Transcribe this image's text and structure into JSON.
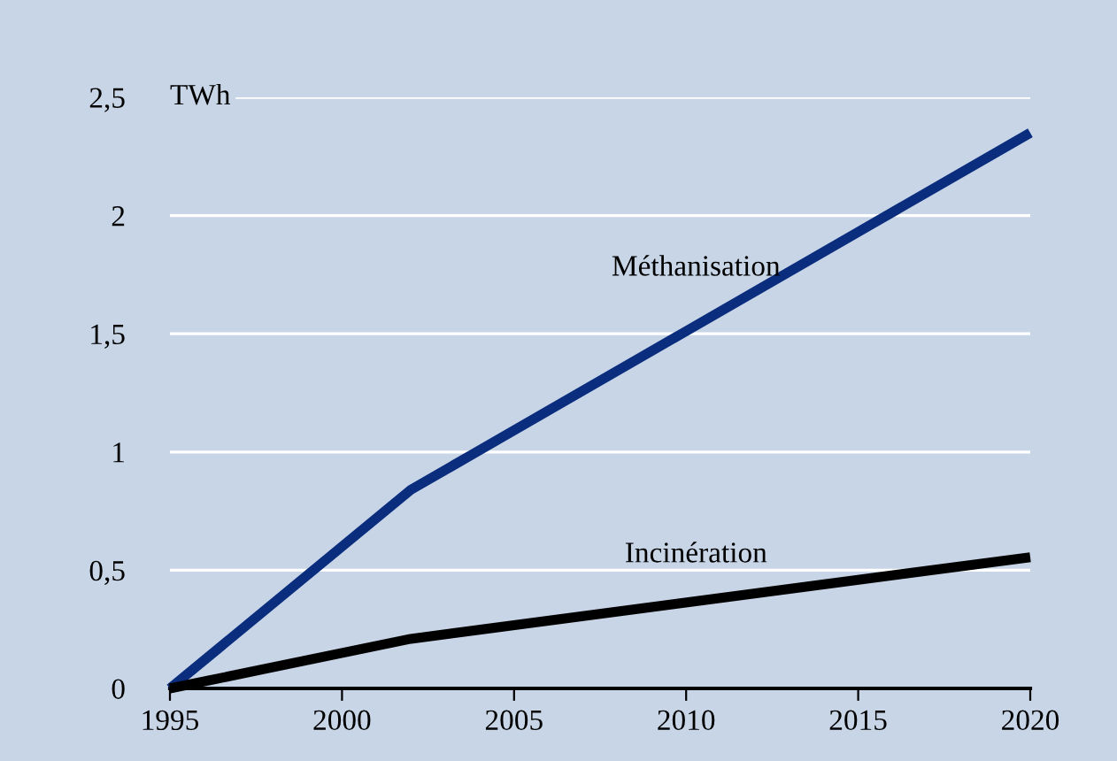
{
  "chart_data": {
    "type": "line",
    "ylabel": "TWh",
    "x": [
      1995,
      2002,
      2020
    ],
    "series": [
      {
        "name": "Méthanisation",
        "color": "#0a2d7d",
        "values": [
          0,
          0.84,
          2.35
        ]
      },
      {
        "name": "Incinération",
        "color": "#000000",
        "values": [
          0,
          0.21,
          0.555
        ]
      }
    ],
    "xlim": [
      1995,
      2020
    ],
    "xticks": [
      1995,
      2000,
      2005,
      2010,
      2015,
      2020
    ],
    "ylim": [
      0,
      2.5
    ],
    "yticks": [
      0,
      {
        "value": 0.5,
        "label": "0,5"
      },
      1,
      {
        "value": 1.5,
        "label": "1,5"
      },
      2,
      {
        "value": 2.5,
        "label": "2,5"
      }
    ],
    "grid": "y",
    "marker": "none",
    "line_style": "solid"
  }
}
